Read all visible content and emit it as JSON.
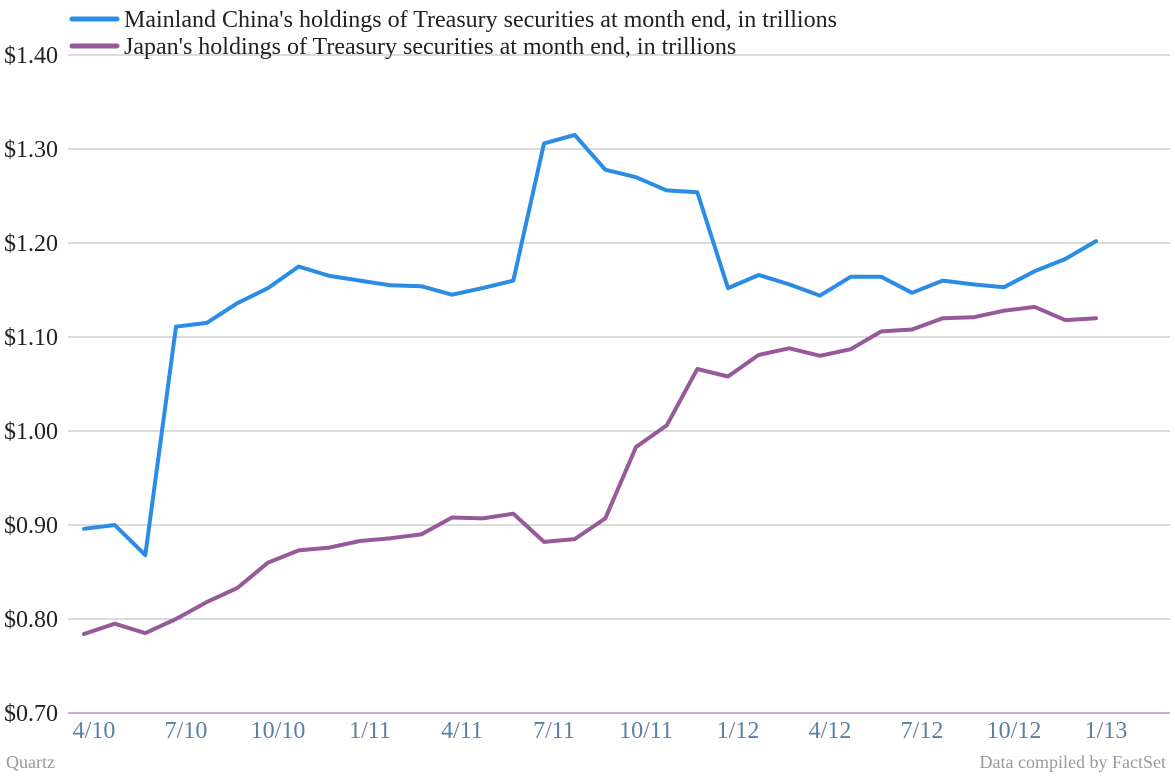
{
  "chart_data": {
    "type": "line",
    "title": "",
    "xlabel": "",
    "ylabel": "",
    "x": [
      "4/10",
      "5/10",
      "6/10",
      "7/10",
      "8/10",
      "9/10",
      "10/10",
      "11/10",
      "12/10",
      "1/11",
      "2/11",
      "3/11",
      "4/11",
      "5/11",
      "6/11",
      "7/11",
      "8/11",
      "9/11",
      "10/11",
      "11/11",
      "12/11",
      "1/12",
      "2/12",
      "3/12",
      "4/12",
      "5/12",
      "6/12",
      "7/12",
      "8/12",
      "9/12",
      "10/12",
      "11/12",
      "12/12",
      "1/13"
    ],
    "x_tick_labels": [
      "4/10",
      "7/10",
      "10/10",
      "1/11",
      "4/11",
      "7/11",
      "10/11",
      "1/12",
      "4/12",
      "7/12",
      "10/12",
      "1/13"
    ],
    "y_tick_labels": [
      "$0.70",
      "$0.80",
      "$0.90",
      "$1.00",
      "$1.10",
      "$1.20",
      "$1.30",
      "$1.40"
    ],
    "ylim": [
      0.7,
      1.4
    ],
    "y_ticks": [
      0.7,
      0.8,
      0.9,
      1.0,
      1.1,
      1.2,
      1.3,
      1.4
    ],
    "grid": true,
    "legend_position": "top-left",
    "series": [
      {
        "name": "Mainland China's holdings of Treasury securities at month end, in trillions",
        "color": "#2b8ce6",
        "values": [
          0.896,
          0.9,
          0.868,
          1.111,
          1.115,
          1.136,
          1.152,
          1.175,
          1.165,
          1.16,
          1.155,
          1.154,
          1.145,
          1.152,
          1.16,
          1.306,
          1.315,
          1.278,
          1.27,
          1.256,
          1.254,
          1.152,
          1.166,
          1.156,
          1.144,
          1.164,
          1.164,
          1.147,
          1.16,
          1.156,
          1.153,
          1.17,
          1.183,
          1.202
        ]
      },
      {
        "name": "Japan's holdings of Treasury securities at month end, in trillions",
        "color": "#96599a",
        "values": [
          0.784,
          0.795,
          0.785,
          0.8,
          0.818,
          0.833,
          0.86,
          0.873,
          0.876,
          0.883,
          0.886,
          0.89,
          0.908,
          0.907,
          0.912,
          0.882,
          0.885,
          0.907,
          0.983,
          1.006,
          1.066,
          1.058,
          1.081,
          1.088,
          1.08,
          1.087,
          1.106,
          1.108,
          1.12,
          1.121,
          1.128,
          1.132,
          1.118,
          1.12
        ]
      }
    ]
  },
  "footer": {
    "left": "Quartz",
    "right": "Data compiled by FactSet"
  }
}
